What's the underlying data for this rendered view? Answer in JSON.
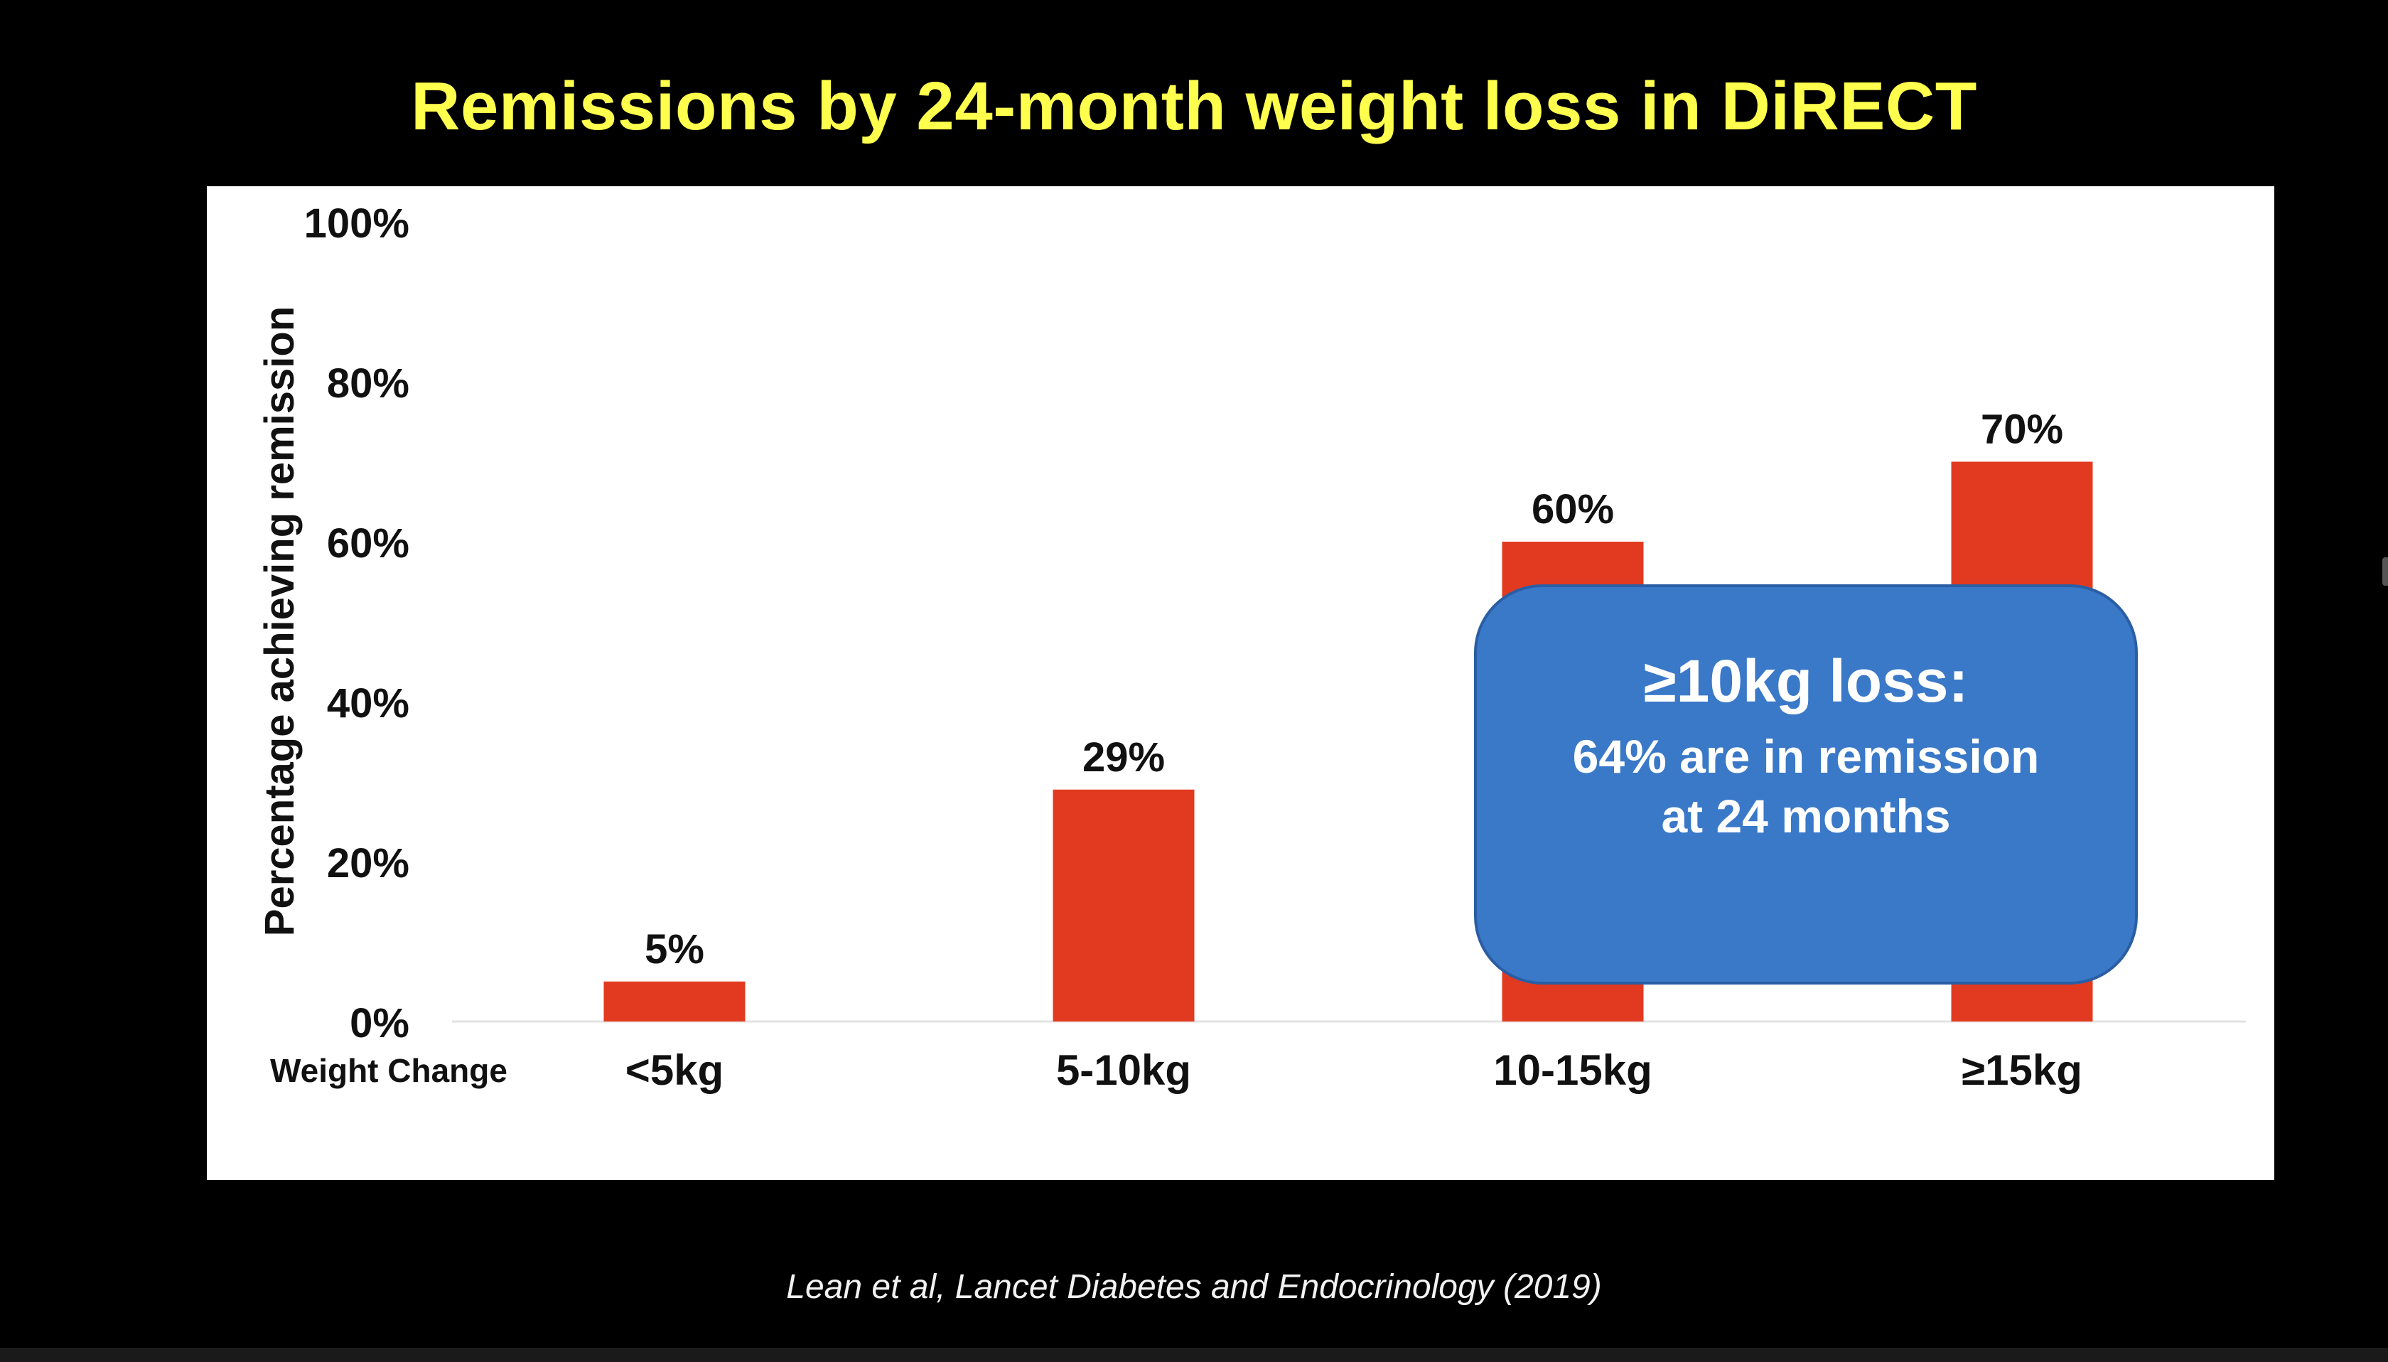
{
  "slide": {
    "title": "Remissions by 24-month weight loss in DiRECT",
    "citation": "Lean et al, Lancet Diabetes and Endocrinology (2019)"
  },
  "callout": {
    "heading": "≥10kg loss:",
    "line1": "64% are in remission",
    "line2": "at 24 months"
  },
  "colors": {
    "background": "#000000",
    "title": "#ffff4d",
    "bar": "#e23a20",
    "callout": "#3a78c8",
    "panel": "#ffffff"
  },
  "chart_data": {
    "type": "bar",
    "title": "Remissions by 24-month weight loss in DiRECT",
    "xlabel": "Weight Change",
    "ylabel": "Percentage achieving remission",
    "categories": [
      "<5kg",
      "5-10kg",
      "10-15kg",
      "≥15kg"
    ],
    "values": [
      5,
      29,
      60,
      70
    ],
    "data_labels": [
      "5%",
      "29%",
      "60%",
      "70%"
    ],
    "ylim": [
      0,
      100
    ],
    "yticks": [
      0,
      20,
      40,
      60,
      80,
      100
    ],
    "ytick_labels": [
      "0%",
      "20%",
      "40%",
      "60%",
      "80%",
      "100%"
    ],
    "grid": false,
    "legend": "none"
  }
}
